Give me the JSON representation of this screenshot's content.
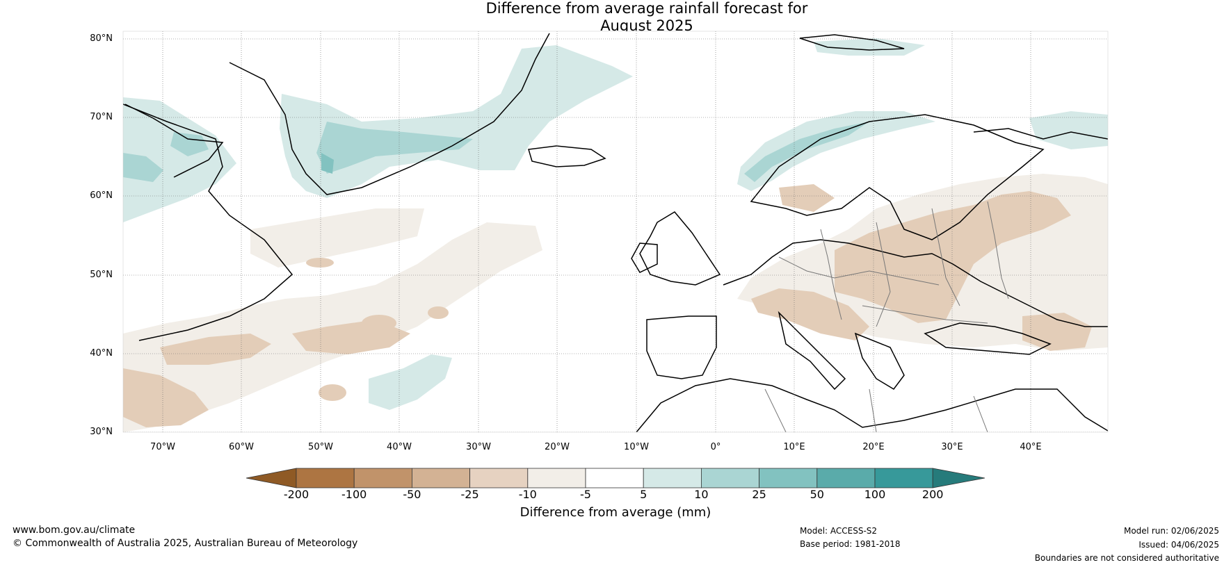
{
  "title_line1": "Difference from average rainfall forecast for",
  "title_line2": "August 2025",
  "latitudes": [
    "80°N",
    "70°N",
    "60°N",
    "50°N",
    "40°N",
    "30°N"
  ],
  "longitudes": [
    "70°W",
    "60°W",
    "50°W",
    "40°W",
    "30°W",
    "20°W",
    "10°W",
    "0°",
    "10°E",
    "20°E",
    "30°E",
    "40°E"
  ],
  "colorbar": {
    "title": "Difference from average (mm)",
    "ticks": [
      "-200",
      "-100",
      "-50",
      "-25",
      "-10",
      "-5",
      "5",
      "10",
      "25",
      "50",
      "100",
      "200"
    ],
    "colors": [
      "#8f5a25",
      "#ad7542",
      "#c1936a",
      "#d3b294",
      "#e6d2c1",
      "#f2eee8",
      "#ffffff",
      "#d5e9e7",
      "#aad5d3",
      "#82c2c0",
      "#5aabaa",
      "#37999a",
      "#267b7b"
    ]
  },
  "footer": {
    "website": "www.bom.gov.au/climate",
    "copyright": "© Commonwealth of Australia 2025, Australian Bureau of Meteorology",
    "model": "Model: ACCESS-S2",
    "base_period": "Base period: 1981-2018",
    "model_run": "Model run: 02/06/2025",
    "issued": "Issued: 04/06/2025",
    "disclaimer": "Boundaries are not considered authoritative"
  }
}
